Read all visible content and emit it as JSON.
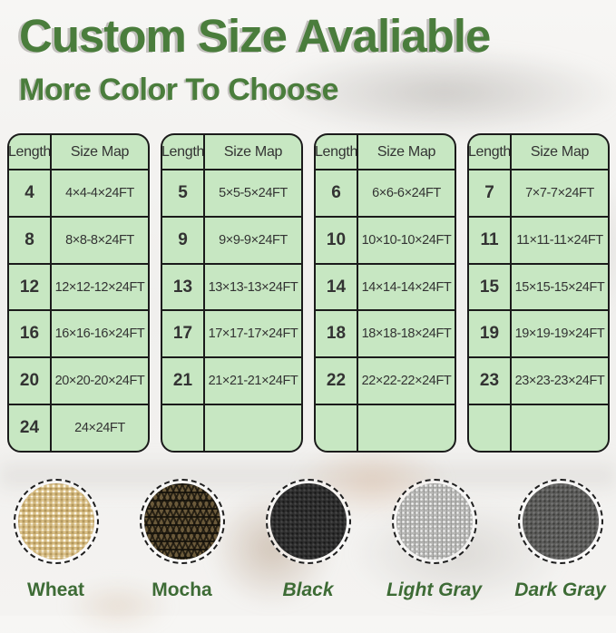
{
  "title": "Custom Size Avaliable",
  "subtitle": "More Color To Choose",
  "theme": {
    "title_green": "#4a7d3c",
    "label_green": "#3d6b35",
    "table_bg": "#c7e7c2",
    "table_border": "#1b1b1b",
    "text_dark": "#333333"
  },
  "tables": [
    {
      "headers": [
        "Length",
        "Size Map"
      ],
      "rows": [
        [
          "4",
          "4×4-4×24FT"
        ],
        [
          "8",
          "8×8-8×24FT"
        ],
        [
          "12",
          "12×12-12×24FT"
        ],
        [
          "16",
          "16×16-16×24FT"
        ],
        [
          "20",
          "20×20-20×24FT"
        ],
        [
          "24",
          "24×24FT"
        ]
      ]
    },
    {
      "headers": [
        "Length",
        "Size Map"
      ],
      "rows": [
        [
          "5",
          "5×5-5×24FT"
        ],
        [
          "9",
          "9×9-9×24FT"
        ],
        [
          "13",
          "13×13-13×24FT"
        ],
        [
          "17",
          "17×17-17×24FT"
        ],
        [
          "21",
          "21×21-21×24FT"
        ],
        [
          "",
          ""
        ]
      ]
    },
    {
      "headers": [
        "Length",
        "Size Map"
      ],
      "rows": [
        [
          "6",
          "6×6-6×24FT"
        ],
        [
          "10",
          "10×10-10×24FT"
        ],
        [
          "14",
          "14×14-14×24FT"
        ],
        [
          "18",
          "18×18-18×24FT"
        ],
        [
          "22",
          "22×22-22×24FT"
        ],
        [
          "",
          ""
        ]
      ]
    },
    {
      "headers": [
        "Length",
        "Size Map"
      ],
      "rows": [
        [
          "7",
          "7×7-7×24FT"
        ],
        [
          "11",
          "11×11-11×24FT"
        ],
        [
          "15",
          "15×15-15×24FT"
        ],
        [
          "19",
          "19×19-19×24FT"
        ],
        [
          "23",
          "23×23-23×24FT"
        ],
        [
          "",
          ""
        ]
      ]
    }
  ],
  "swatches": [
    {
      "key": "wheat",
      "label": "Wheat",
      "italic": false,
      "base_color": "#d9bf86"
    },
    {
      "key": "mocha",
      "label": "Mocha",
      "italic": false,
      "base_color": "#6b5a3a"
    },
    {
      "key": "black",
      "label": "Black",
      "italic": true,
      "base_color": "#2e2e2e"
    },
    {
      "key": "light-gray",
      "label": "Light Gray",
      "italic": true,
      "base_color": "#b7b7b5"
    },
    {
      "key": "dark-gray",
      "label": "Dark Gray",
      "italic": true,
      "base_color": "#5c5c5a"
    }
  ]
}
